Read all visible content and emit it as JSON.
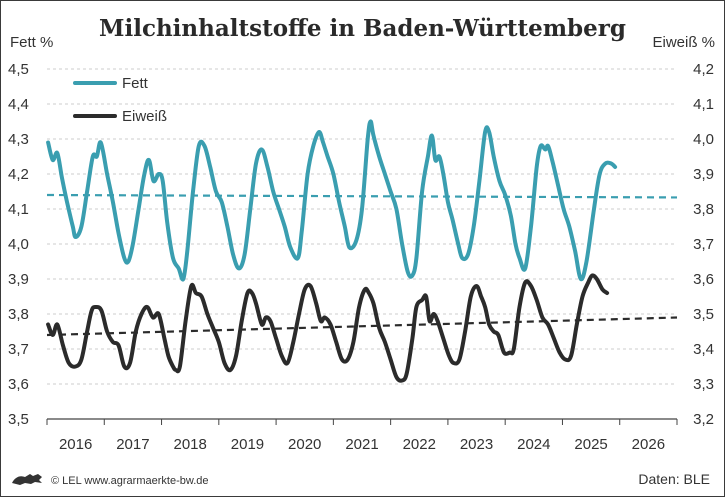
{
  "chart_data": {
    "type": "line",
    "title": "Milchinhaltstoffe in Baden-Württemberg",
    "left_axis_label": "Fett %",
    "right_axis_label": "Eiweiß %",
    "x_ticks": [
      "2016",
      "2017",
      "2018",
      "2019",
      "2020",
      "2021",
      "2022",
      "2023",
      "2024",
      "2025",
      "2026"
    ],
    "x_range": [
      2015.5,
      2026.5
    ],
    "ylim_left": [
      3.5,
      4.5
    ],
    "ylim_right": [
      3.2,
      4.2
    ],
    "y_ticks_left": [
      "4,5",
      "4,4",
      "4,3",
      "4,2",
      "4,1",
      "4,0",
      "3,9",
      "3,8",
      "3,7",
      "3,6",
      "3,5"
    ],
    "y_ticks_right": [
      "4,2",
      "4,1",
      "4,0",
      "3,9",
      "3,8",
      "3,7",
      "3,6",
      "3,5",
      "3,4",
      "3,3",
      "3,2"
    ],
    "grid": "horizontal dashed",
    "legend_position": "top-left",
    "series": [
      {
        "name": "Fett",
        "axis": "left",
        "color": "#3a9eb0",
        "points": [
          [
            2015.52,
            4.29
          ],
          [
            2015.6,
            4.24
          ],
          [
            2015.68,
            4.26
          ],
          [
            2015.76,
            4.19
          ],
          [
            2015.85,
            4.12
          ],
          [
            2015.95,
            4.05
          ],
          [
            2016.0,
            4.02
          ],
          [
            2016.1,
            4.05
          ],
          [
            2016.2,
            4.15
          ],
          [
            2016.3,
            4.25
          ],
          [
            2016.37,
            4.25
          ],
          [
            2016.44,
            4.29
          ],
          [
            2016.55,
            4.2
          ],
          [
            2016.65,
            4.12
          ],
          [
            2016.75,
            4.03
          ],
          [
            2016.85,
            3.96
          ],
          [
            2016.92,
            3.95
          ],
          [
            2017.0,
            4.0
          ],
          [
            2017.1,
            4.1
          ],
          [
            2017.2,
            4.2
          ],
          [
            2017.28,
            4.24
          ],
          [
            2017.36,
            4.18
          ],
          [
            2017.45,
            4.2
          ],
          [
            2017.52,
            4.18
          ],
          [
            2017.6,
            4.06
          ],
          [
            2017.7,
            3.96
          ],
          [
            2017.8,
            3.93
          ],
          [
            2017.88,
            3.9
          ],
          [
            2017.95,
            3.98
          ],
          [
            2018.05,
            4.15
          ],
          [
            2018.15,
            4.28
          ],
          [
            2018.25,
            4.28
          ],
          [
            2018.35,
            4.22
          ],
          [
            2018.45,
            4.15
          ],
          [
            2018.55,
            4.12
          ],
          [
            2018.65,
            4.05
          ],
          [
            2018.75,
            3.97
          ],
          [
            2018.85,
            3.93
          ],
          [
            2018.95,
            3.97
          ],
          [
            2019.05,
            4.1
          ],
          [
            2019.15,
            4.23
          ],
          [
            2019.25,
            4.27
          ],
          [
            2019.35,
            4.22
          ],
          [
            2019.45,
            4.15
          ],
          [
            2019.55,
            4.1
          ],
          [
            2019.65,
            4.05
          ],
          [
            2019.75,
            3.99
          ],
          [
            2019.88,
            3.96
          ],
          [
            2019.95,
            4.04
          ],
          [
            2020.05,
            4.2
          ],
          [
            2020.15,
            4.28
          ],
          [
            2020.25,
            4.32
          ],
          [
            2020.32,
            4.29
          ],
          [
            2020.4,
            4.25
          ],
          [
            2020.5,
            4.2
          ],
          [
            2020.6,
            4.12
          ],
          [
            2020.7,
            4.05
          ],
          [
            2020.78,
            3.99
          ],
          [
            2020.9,
            4.01
          ],
          [
            2021.0,
            4.1
          ],
          [
            2021.1,
            4.3
          ],
          [
            2021.15,
            4.35
          ],
          [
            2021.2,
            4.31
          ],
          [
            2021.3,
            4.25
          ],
          [
            2021.4,
            4.2
          ],
          [
            2021.5,
            4.15
          ],
          [
            2021.6,
            4.1
          ],
          [
            2021.7,
            4.0
          ],
          [
            2021.8,
            3.92
          ],
          [
            2021.88,
            3.91
          ],
          [
            2021.95,
            3.96
          ],
          [
            2022.05,
            4.15
          ],
          [
            2022.15,
            4.25
          ],
          [
            2022.22,
            4.31
          ],
          [
            2022.28,
            4.24
          ],
          [
            2022.35,
            4.25
          ],
          [
            2022.42,
            4.2
          ],
          [
            2022.5,
            4.12
          ],
          [
            2022.58,
            4.07
          ],
          [
            2022.68,
            4.0
          ],
          [
            2022.75,
            3.96
          ],
          [
            2022.85,
            3.97
          ],
          [
            2022.95,
            4.05
          ],
          [
            2023.05,
            4.18
          ],
          [
            2023.15,
            4.32
          ],
          [
            2023.22,
            4.32
          ],
          [
            2023.3,
            4.25
          ],
          [
            2023.4,
            4.18
          ],
          [
            2023.5,
            4.14
          ],
          [
            2023.6,
            4.08
          ],
          [
            2023.68,
            4.0
          ],
          [
            2023.75,
            3.96
          ],
          [
            2023.85,
            3.93
          ],
          [
            2023.95,
            4.05
          ],
          [
            2024.05,
            4.22
          ],
          [
            2024.12,
            4.28
          ],
          [
            2024.2,
            4.27
          ],
          [
            2024.25,
            4.28
          ],
          [
            2024.32,
            4.24
          ],
          [
            2024.42,
            4.17
          ],
          [
            2024.52,
            4.1
          ],
          [
            2024.62,
            4.05
          ],
          [
            2024.72,
            3.98
          ],
          [
            2024.82,
            3.9
          ],
          [
            2024.92,
            3.95
          ],
          [
            2025.05,
            4.1
          ],
          [
            2025.15,
            4.2
          ],
          [
            2025.25,
            4.23
          ],
          [
            2025.35,
            4.23
          ],
          [
            2025.42,
            4.22
          ]
        ]
      },
      {
        "name": "Eiweiß",
        "axis": "right",
        "color": "#2b2b2b",
        "points": [
          [
            2015.52,
            3.47
          ],
          [
            2015.6,
            3.44
          ],
          [
            2015.68,
            3.47
          ],
          [
            2015.78,
            3.41
          ],
          [
            2015.88,
            3.36
          ],
          [
            2016.0,
            3.35
          ],
          [
            2016.1,
            3.37
          ],
          [
            2016.2,
            3.45
          ],
          [
            2016.28,
            3.51
          ],
          [
            2016.35,
            3.52
          ],
          [
            2016.45,
            3.51
          ],
          [
            2016.55,
            3.45
          ],
          [
            2016.65,
            3.42
          ],
          [
            2016.75,
            3.41
          ],
          [
            2016.85,
            3.35
          ],
          [
            2016.95,
            3.36
          ],
          [
            2017.05,
            3.45
          ],
          [
            2017.15,
            3.5
          ],
          [
            2017.25,
            3.52
          ],
          [
            2017.35,
            3.49
          ],
          [
            2017.45,
            3.5
          ],
          [
            2017.55,
            3.43
          ],
          [
            2017.62,
            3.38
          ],
          [
            2017.7,
            3.35
          ],
          [
            2017.75,
            3.34
          ],
          [
            2017.82,
            3.35
          ],
          [
            2017.92,
            3.48
          ],
          [
            2018.02,
            3.58
          ],
          [
            2018.1,
            3.56
          ],
          [
            2018.2,
            3.55
          ],
          [
            2018.3,
            3.5
          ],
          [
            2018.4,
            3.46
          ],
          [
            2018.5,
            3.42
          ],
          [
            2018.6,
            3.36
          ],
          [
            2018.7,
            3.34
          ],
          [
            2018.8,
            3.38
          ],
          [
            2018.9,
            3.48
          ],
          [
            2019.0,
            3.56
          ],
          [
            2019.08,
            3.56
          ],
          [
            2019.15,
            3.53
          ],
          [
            2019.25,
            3.47
          ],
          [
            2019.32,
            3.49
          ],
          [
            2019.4,
            3.48
          ],
          [
            2019.5,
            3.43
          ],
          [
            2019.6,
            3.38
          ],
          [
            2019.7,
            3.36
          ],
          [
            2019.8,
            3.42
          ],
          [
            2019.9,
            3.5
          ],
          [
            2020.0,
            3.57
          ],
          [
            2020.1,
            3.58
          ],
          [
            2020.2,
            3.53
          ],
          [
            2020.28,
            3.48
          ],
          [
            2020.35,
            3.49
          ],
          [
            2020.45,
            3.47
          ],
          [
            2020.55,
            3.42
          ],
          [
            2020.65,
            3.37
          ],
          [
            2020.75,
            3.37
          ],
          [
            2020.85,
            3.42
          ],
          [
            2020.95,
            3.52
          ],
          [
            2021.05,
            3.57
          ],
          [
            2021.12,
            3.56
          ],
          [
            2021.2,
            3.53
          ],
          [
            2021.3,
            3.46
          ],
          [
            2021.4,
            3.42
          ],
          [
            2021.5,
            3.37
          ],
          [
            2021.6,
            3.32
          ],
          [
            2021.7,
            3.31
          ],
          [
            2021.78,
            3.33
          ],
          [
            2021.88,
            3.43
          ],
          [
            2021.95,
            3.52
          ],
          [
            2022.05,
            3.54
          ],
          [
            2022.12,
            3.55
          ],
          [
            2022.18,
            3.48
          ],
          [
            2022.25,
            3.5
          ],
          [
            2022.32,
            3.48
          ],
          [
            2022.42,
            3.43
          ],
          [
            2022.52,
            3.38
          ],
          [
            2022.6,
            3.36
          ],
          [
            2022.7,
            3.37
          ],
          [
            2022.8,
            3.45
          ],
          [
            2022.9,
            3.55
          ],
          [
            2023.0,
            3.58
          ],
          [
            2023.08,
            3.55
          ],
          [
            2023.15,
            3.52
          ],
          [
            2023.22,
            3.47
          ],
          [
            2023.3,
            3.45
          ],
          [
            2023.38,
            3.44
          ],
          [
            2023.48,
            3.39
          ],
          [
            2023.58,
            3.39
          ],
          [
            2023.65,
            3.4
          ],
          [
            2023.75,
            3.52
          ],
          [
            2023.85,
            3.59
          ],
          [
            2023.95,
            3.58
          ],
          [
            2024.05,
            3.54
          ],
          [
            2024.15,
            3.49
          ],
          [
            2024.25,
            3.47
          ],
          [
            2024.35,
            3.43
          ],
          [
            2024.45,
            3.39
          ],
          [
            2024.55,
            3.37
          ],
          [
            2024.65,
            3.38
          ],
          [
            2024.75,
            3.47
          ],
          [
            2024.85,
            3.55
          ],
          [
            2024.95,
            3.59
          ],
          [
            2025.02,
            3.61
          ],
          [
            2025.1,
            3.6
          ],
          [
            2025.2,
            3.57
          ],
          [
            2025.28,
            3.56
          ]
        ]
      }
    ],
    "trend_lines": [
      {
        "axis": "left",
        "color": "#3a9eb0",
        "x": [
          2015.5,
          2026.5
        ],
        "y": [
          4.14,
          4.133
        ]
      },
      {
        "axis": "right",
        "color": "#2b2b2b",
        "x": [
          2015.5,
          2026.5
        ],
        "y": [
          3.44,
          3.49
        ]
      }
    ],
    "source": "Daten: BLE",
    "credit": "© LEL www.agrarmaerkte-bw.de"
  }
}
